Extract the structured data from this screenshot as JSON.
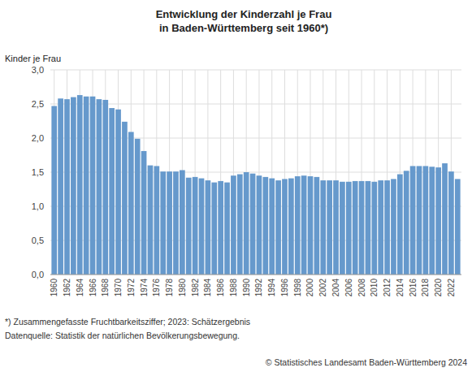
{
  "chart_data": {
    "type": "bar",
    "title": "Entwicklung der Kinderzahl je Frau\nin Baden-Württemberg seit 1960*)",
    "y_label": "Kinder je Frau",
    "annotations": [
      "*) Zusammengefasste Fruchtbarkeitsziffer; 2023: Schätzergebnis",
      "Datenquelle: Statistik der natürlichen Bevölkerungsbewegung.",
      "© Statistisches Landesamt Baden-Württemberg 2024"
    ],
    "color": "#6699cc",
    "grid": true,
    "x": [
      1960,
      1961,
      1962,
      1963,
      1964,
      1965,
      1966,
      1967,
      1968,
      1969,
      1970,
      1971,
      1972,
      1973,
      1974,
      1975,
      1976,
      1977,
      1978,
      1979,
      1980,
      1981,
      1982,
      1983,
      1984,
      1985,
      1986,
      1987,
      1988,
      1989,
      1990,
      1991,
      1992,
      1993,
      1994,
      1995,
      1996,
      1997,
      1998,
      1999,
      2000,
      2001,
      2002,
      2003,
      2004,
      2005,
      2006,
      2007,
      2008,
      2009,
      2010,
      2011,
      2012,
      2013,
      2014,
      2015,
      2016,
      2017,
      2018,
      2019,
      2020,
      2021,
      2022,
      2023
    ],
    "values": [
      2.47,
      2.58,
      2.57,
      2.6,
      2.63,
      2.61,
      2.61,
      2.57,
      2.56,
      2.44,
      2.42,
      2.24,
      2.09,
      1.99,
      1.81,
      1.6,
      1.59,
      1.51,
      1.51,
      1.51,
      1.53,
      1.42,
      1.43,
      1.41,
      1.38,
      1.35,
      1.37,
      1.35,
      1.45,
      1.47,
      1.5,
      1.48,
      1.45,
      1.43,
      1.41,
      1.38,
      1.4,
      1.41,
      1.44,
      1.45,
      1.44,
      1.43,
      1.38,
      1.38,
      1.38,
      1.36,
      1.36,
      1.37,
      1.37,
      1.37,
      1.36,
      1.38,
      1.38,
      1.4,
      1.47,
      1.52,
      1.59,
      1.59,
      1.59,
      1.58,
      1.57,
      1.63,
      1.51,
      1.4
    ],
    "xlim": [
      1959.4,
      2023.6
    ],
    "xticks": [
      1960,
      1962,
      1964,
      1966,
      1968,
      1970,
      1972,
      1974,
      1976,
      1978,
      1980,
      1982,
      1984,
      1986,
      1988,
      1990,
      1992,
      1994,
      1996,
      1998,
      2000,
      2002,
      2004,
      2006,
      2008,
      2010,
      2012,
      2014,
      2016,
      2018,
      2020,
      2022
    ],
    "ylim": [
      0.0,
      3.0
    ],
    "yticks": [
      {
        "value": 0.0,
        "label": "0,0"
      },
      {
        "value": 0.5,
        "label": "0,5"
      },
      {
        "value": 1.0,
        "label": "1,0"
      },
      {
        "value": 1.5,
        "label": "1,5"
      },
      {
        "value": 2.0,
        "label": "2,0"
      },
      {
        "value": 2.5,
        "label": "2,5"
      },
      {
        "value": 3.0,
        "label": "3,0"
      }
    ]
  }
}
